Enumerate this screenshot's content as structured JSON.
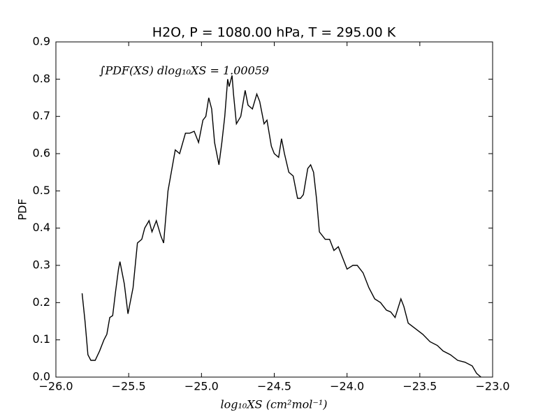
{
  "chart_data": {
    "type": "line",
    "title": "H2O, P = 1080.00 hPa, T = 295.00 K",
    "xlabel": "log₁₀XS (cm²mol⁻¹)",
    "ylabel": "PDF",
    "annotation": "∫PDF(XS) dlog₁₀XS = 1.00059",
    "color": "#000000",
    "x": [
      -25.82,
      -25.8,
      -25.78,
      -25.76,
      -25.73,
      -25.7,
      -25.67,
      -25.65,
      -25.63,
      -25.61,
      -25.59,
      -25.57,
      -25.56,
      -25.53,
      -25.505,
      -25.47,
      -25.44,
      -25.41,
      -25.39,
      -25.36,
      -25.34,
      -25.31,
      -25.28,
      -25.26,
      -25.23,
      -25.18,
      -25.15,
      -25.11,
      -25.08,
      -25.05,
      -25.02,
      -24.99,
      -24.97,
      -24.95,
      -24.93,
      -24.91,
      -24.88,
      -24.86,
      -24.84,
      -24.82,
      -24.81,
      -24.79,
      -24.78,
      -24.76,
      -24.73,
      -24.7,
      -24.68,
      -24.65,
      -24.62,
      -24.6,
      -24.57,
      -24.55,
      -24.52,
      -24.5,
      -24.47,
      -24.45,
      -24.43,
      -24.4,
      -24.37,
      -24.34,
      -24.32,
      -24.3,
      -24.27,
      -24.25,
      -24.23,
      -24.21,
      -24.19,
      -24.15,
      -24.12,
      -24.09,
      -24.06,
      -24.03,
      -24.0,
      -23.96,
      -23.93,
      -23.89,
      -23.85,
      -23.81,
      -23.77,
      -23.73,
      -23.7,
      -23.67,
      -23.63,
      -23.61,
      -23.58,
      -23.53,
      -23.48,
      -23.43,
      -23.38,
      -23.34,
      -23.29,
      -23.24,
      -23.19,
      -23.14,
      -23.11,
      -23.08
    ],
    "values": [
      0.225,
      0.15,
      0.06,
      0.045,
      0.045,
      0.07,
      0.1,
      0.115,
      0.16,
      0.165,
      0.23,
      0.29,
      0.31,
      0.25,
      0.17,
      0.24,
      0.36,
      0.37,
      0.4,
      0.42,
      0.39,
      0.42,
      0.38,
      0.36,
      0.5,
      0.61,
      0.6,
      0.655,
      0.655,
      0.66,
      0.63,
      0.69,
      0.7,
      0.75,
      0.72,
      0.63,
      0.57,
      0.63,
      0.7,
      0.8,
      0.78,
      0.81,
      0.76,
      0.68,
      0.7,
      0.77,
      0.73,
      0.72,
      0.76,
      0.74,
      0.68,
      0.69,
      0.62,
      0.6,
      0.59,
      0.64,
      0.6,
      0.55,
      0.54,
      0.48,
      0.48,
      0.49,
      0.56,
      0.57,
      0.55,
      0.48,
      0.39,
      0.37,
      0.37,
      0.34,
      0.35,
      0.32,
      0.29,
      0.3,
      0.3,
      0.28,
      0.24,
      0.21,
      0.2,
      0.18,
      0.175,
      0.16,
      0.21,
      0.19,
      0.145,
      0.13,
      0.115,
      0.095,
      0.085,
      0.07,
      0.06,
      0.045,
      0.04,
      0.03,
      0.01,
      0.0
    ],
    "xlim": [
      -26,
      -23
    ],
    "xticks": [
      {
        "value": -26,
        "label": "−26.0"
      },
      {
        "value": -25.5,
        "label": "−25.5"
      },
      {
        "value": -25,
        "label": "−25.0"
      },
      {
        "value": -24.5,
        "label": "−24.5"
      },
      {
        "value": -24,
        "label": "−24.0"
      },
      {
        "value": -23.5,
        "label": "−23.5"
      },
      {
        "value": -23,
        "label": "−23.0"
      }
    ],
    "ylim": [
      0,
      0.9
    ],
    "yticks": [
      {
        "value": 0,
        "label": "0.0"
      },
      0.1,
      0.2,
      0.3,
      0.4,
      0.5,
      0.6,
      0.7,
      0.8,
      0.9
    ],
    "grid": false
  }
}
